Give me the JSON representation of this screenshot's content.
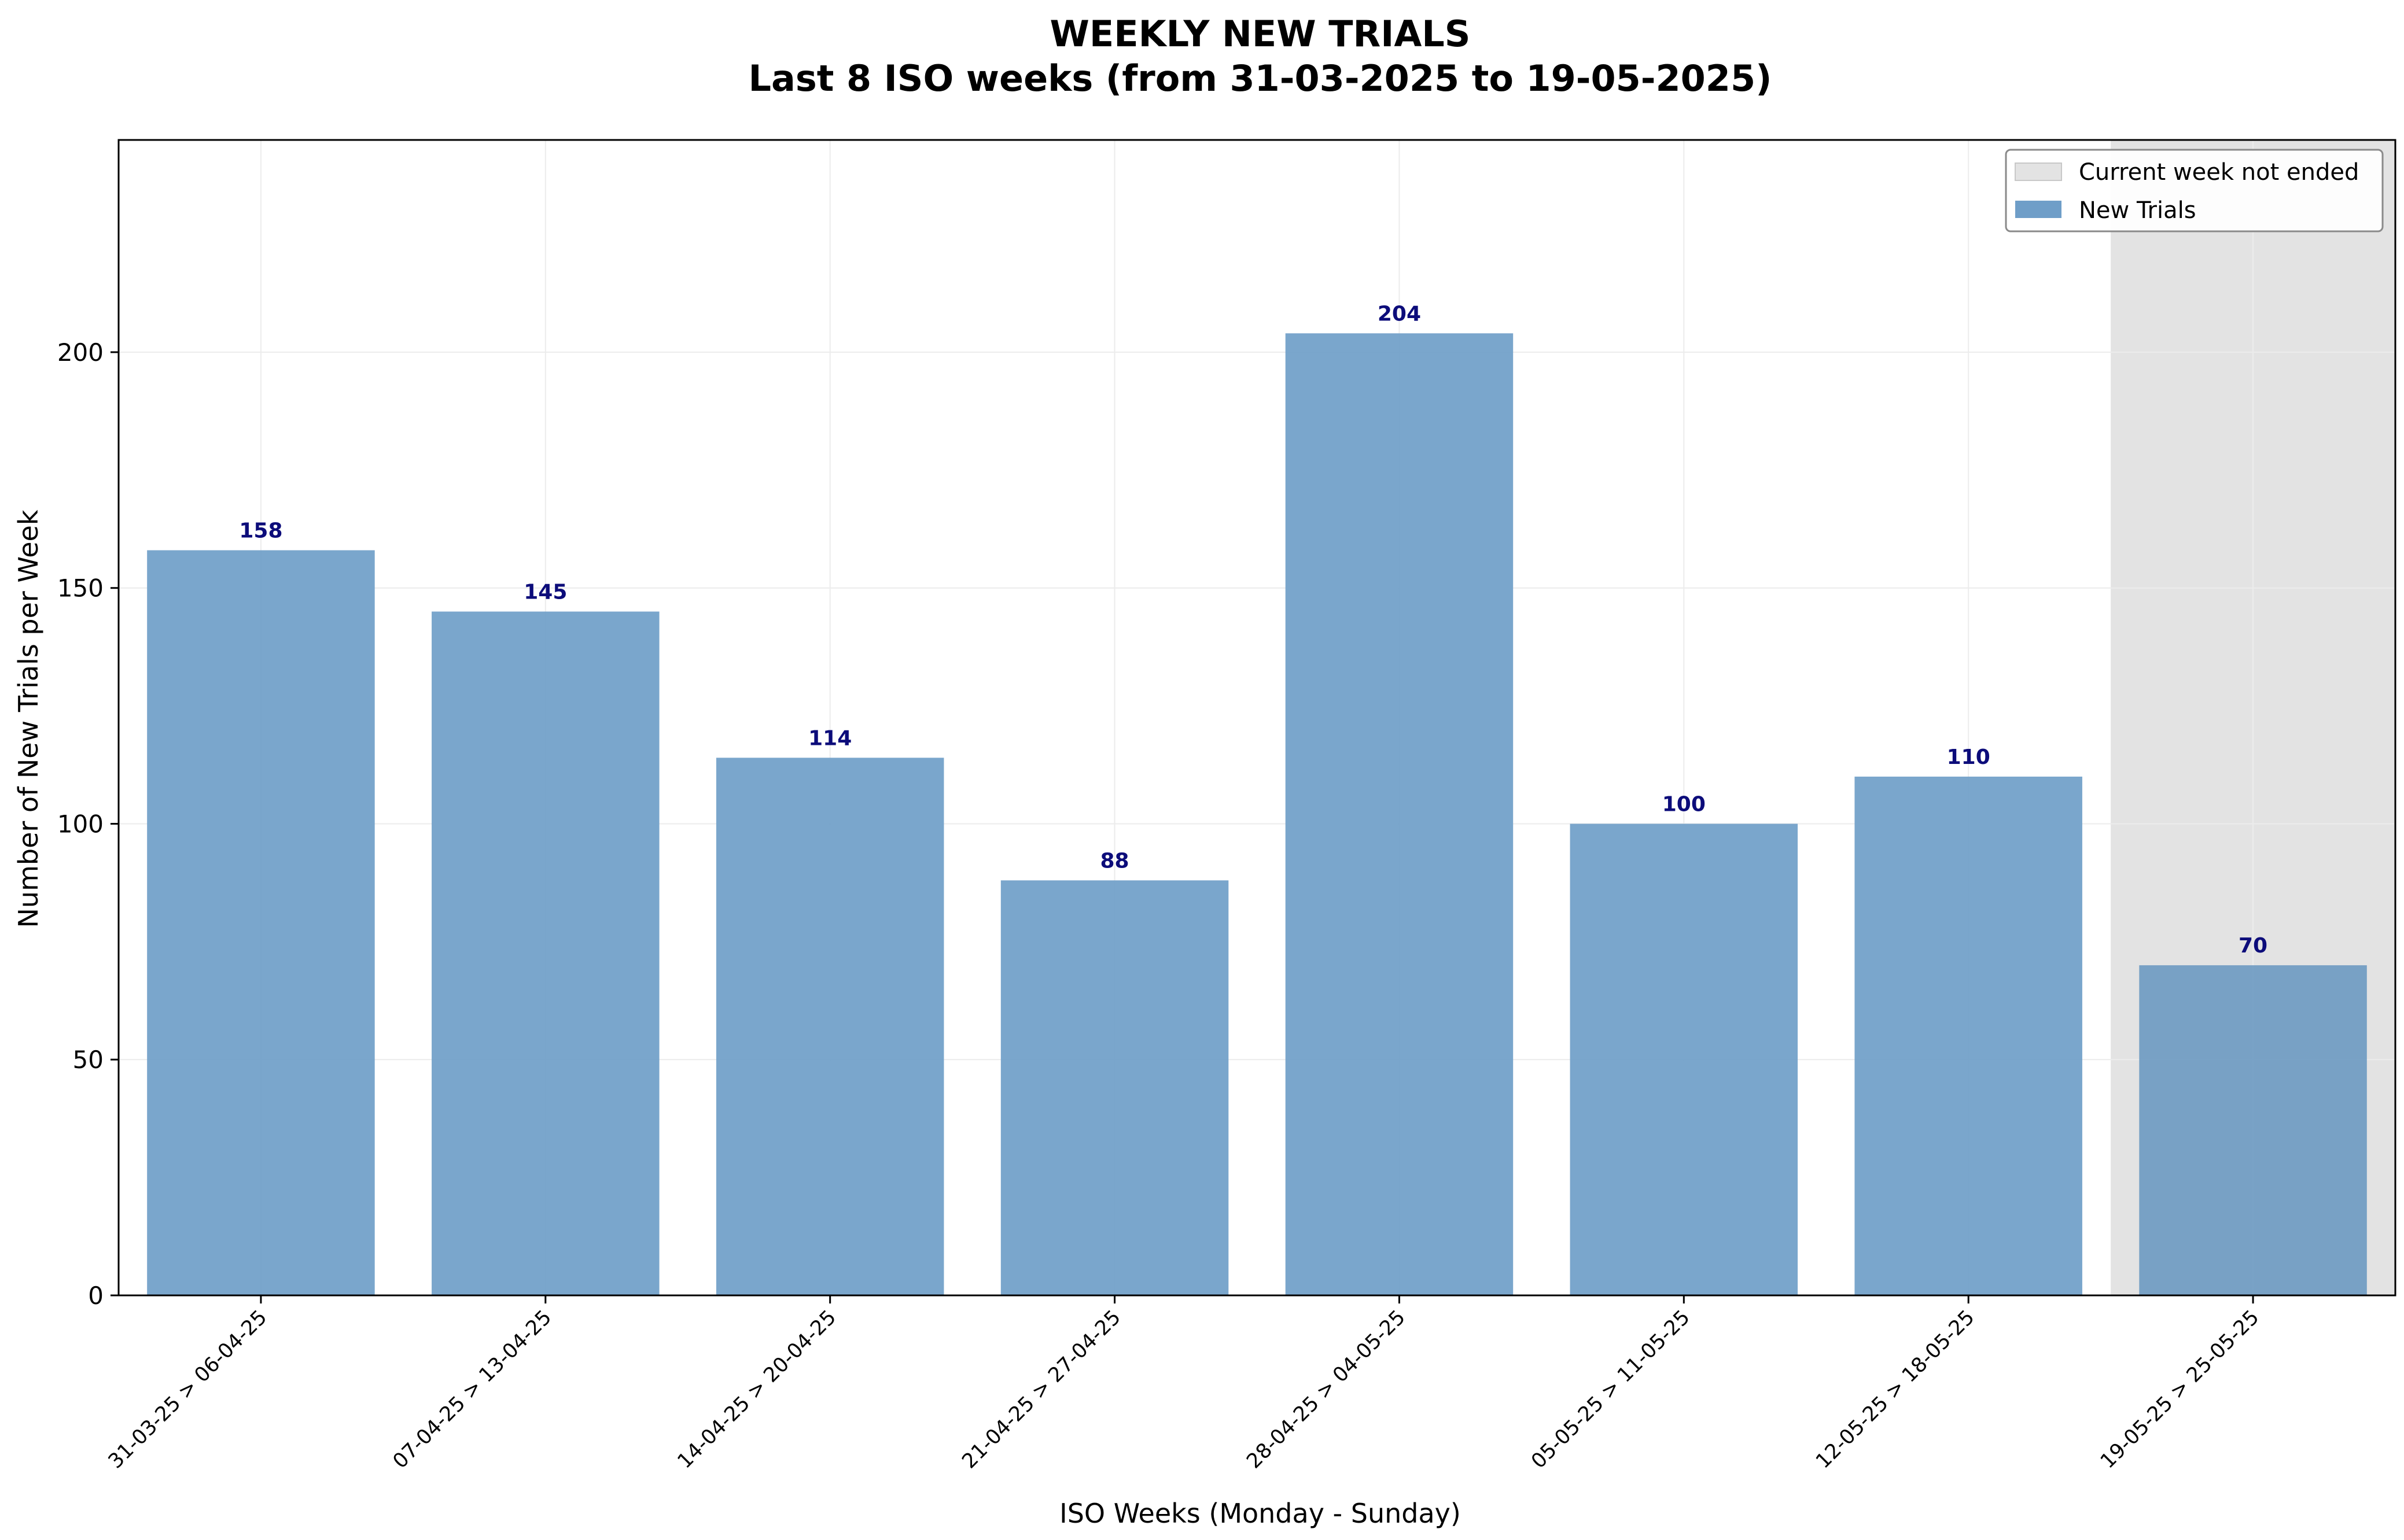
{
  "chart_data": {
    "type": "bar",
    "title": "WEEKLY NEW TRIALS",
    "subtitle": "Last 8 ISO weeks (from 31-03-2025 to 19-05-2025)",
    "xlabel": "ISO Weeks (Monday - Sunday)",
    "ylabel": "Number of New Trials per Week",
    "categories": [
      "31-03-25 > 06-04-25",
      "07-04-25 > 13-04-25",
      "14-04-25 > 20-04-25",
      "21-04-25 > 27-04-25",
      "28-04-25 > 04-05-25",
      "05-05-25 > 11-05-25",
      "12-05-25 > 18-05-25",
      "19-05-25 > 25-05-25"
    ],
    "series": [
      {
        "name": "New Trials",
        "values": [
          158,
          145,
          114,
          88,
          204,
          100,
          110,
          70
        ],
        "color": "#6f9ec8"
      }
    ],
    "ylim": [
      0,
      245
    ],
    "yticks": [
      0,
      50,
      100,
      150,
      200
    ],
    "grid": true,
    "legend_position": "top-right",
    "highlight": {
      "label": "Current week not ended",
      "category_index": 7,
      "color": "#e3e3e3"
    },
    "data_label_color": "#0c0c7a"
  }
}
